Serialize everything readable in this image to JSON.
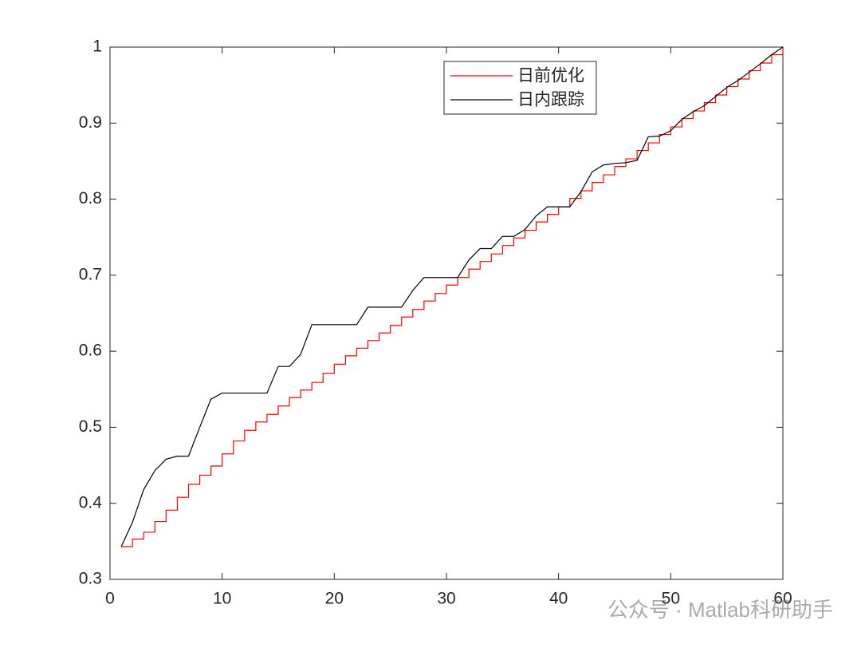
{
  "chart_data": {
    "type": "line",
    "x": [
      1,
      2,
      3,
      4,
      5,
      6,
      7,
      8,
      9,
      10,
      11,
      12,
      13,
      14,
      15,
      16,
      17,
      18,
      19,
      20,
      21,
      22,
      23,
      24,
      25,
      26,
      27,
      28,
      29,
      30,
      31,
      32,
      33,
      34,
      35,
      36,
      37,
      38,
      39,
      40,
      41,
      42,
      43,
      44,
      45,
      46,
      47,
      48,
      49,
      50,
      51,
      52,
      53,
      54,
      55,
      56,
      57,
      58,
      59,
      60
    ],
    "series": [
      {
        "name": "日前优化",
        "color": "#ff0000",
        "drawstyle": "steps-post",
        "values": [
          0.343,
          0.353,
          0.362,
          0.376,
          0.391,
          0.408,
          0.425,
          0.437,
          0.449,
          0.465,
          0.482,
          0.496,
          0.507,
          0.517,
          0.528,
          0.539,
          0.549,
          0.559,
          0.571,
          0.583,
          0.594,
          0.604,
          0.614,
          0.624,
          0.634,
          0.645,
          0.655,
          0.666,
          0.676,
          0.687,
          0.697,
          0.708,
          0.718,
          0.728,
          0.739,
          0.749,
          0.759,
          0.77,
          0.78,
          0.79,
          0.801,
          0.811,
          0.822,
          0.832,
          0.843,
          0.853,
          0.864,
          0.874,
          0.885,
          0.895,
          0.906,
          0.916,
          0.927,
          0.937,
          0.948,
          0.958,
          0.969,
          0.979,
          0.99,
          1.0
        ]
      },
      {
        "name": "日内跟踪",
        "color": "#000000",
        "drawstyle": "default",
        "values": [
          0.343,
          0.375,
          0.418,
          0.443,
          0.458,
          0.462,
          0.462,
          0.5,
          0.537,
          0.545,
          0.545,
          0.545,
          0.545,
          0.545,
          0.58,
          0.58,
          0.596,
          0.635,
          0.635,
          0.635,
          0.635,
          0.635,
          0.658,
          0.658,
          0.658,
          0.658,
          0.68,
          0.697,
          0.697,
          0.697,
          0.697,
          0.72,
          0.735,
          0.735,
          0.751,
          0.751,
          0.76,
          0.778,
          0.79,
          0.79,
          0.79,
          0.81,
          0.836,
          0.845,
          0.847,
          0.848,
          0.851,
          0.882,
          0.883,
          0.89,
          0.905,
          0.915,
          0.923,
          0.935,
          0.947,
          0.956,
          0.967,
          0.978,
          0.99,
          1.0
        ]
      }
    ],
    "xlim": [
      0,
      60
    ],
    "xticks": [
      0,
      10,
      20,
      30,
      40,
      50,
      60
    ],
    "ylim": [
      0.3,
      1
    ],
    "yticks": [
      0.3,
      0.4,
      0.5,
      0.6,
      0.7,
      0.8,
      0.9,
      1
    ],
    "legend": "north-east",
    "box": true,
    "watermark": "公众号 · Matlab科研助手"
  }
}
